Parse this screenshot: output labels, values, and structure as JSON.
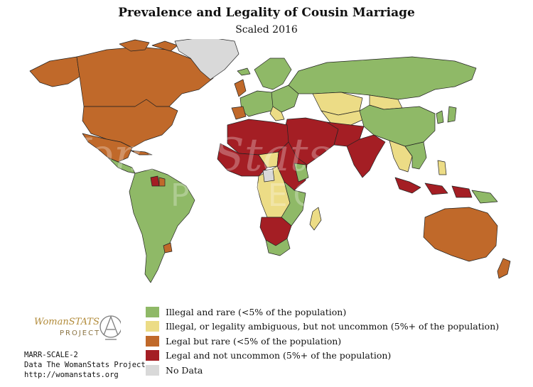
{
  "title": "Prevalence and Legality of Cousin Marriage",
  "subtitle": "Scaled 2016",
  "colors": {
    "illegal_rare": "#8fb967",
    "ambiguous": "#ecdc86",
    "legal_rare": "#c0692a",
    "legal_common": "#a41e24",
    "no_data": "#d9d9d9",
    "ocean": "#ffffff",
    "border": "#222222"
  },
  "legend": [
    {
      "label": "Illegal and rare (<5% of the population)",
      "color": "#8fb967"
    },
    {
      "label": "Illegal, or legality ambiguous, but not uncommon (5%+ of the population)",
      "color": "#ecdc86"
    },
    {
      "label": "Legal but rare (<5% of the population)",
      "color": "#c0692a"
    },
    {
      "label": "Legal and not uncommon (5%+ of the population)",
      "color": "#a41e24"
    },
    {
      "label": "No Data",
      "color": "#d9d9d9"
    }
  ],
  "logo": {
    "brand": "WomanSTATS",
    "subtitle": "PROJECT"
  },
  "credits": {
    "code": "MARR-SCALE-2",
    "source": "Data The WomanStats Project",
    "url": "http://womanstats.org"
  },
  "watermark": {
    "brand": "WomanStats",
    "subtitle": "PROJECT"
  }
}
